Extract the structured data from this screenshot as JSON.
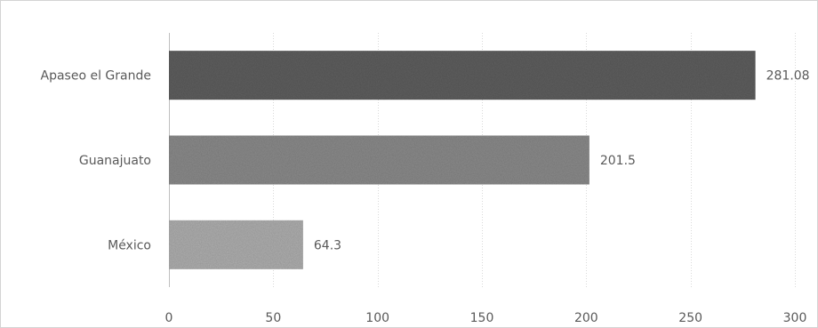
{
  "chart_data": {
    "type": "bar",
    "orientation": "horizontal",
    "categories": [
      "Apaseo el Grande",
      "Guanajuato",
      "México"
    ],
    "values": [
      281.08,
      201.5,
      64.3
    ],
    "value_labels": [
      "281.08",
      "201.5",
      "64.3"
    ],
    "title": "",
    "xlabel": "",
    "ylabel": "",
    "xlim": [
      0,
      300
    ],
    "x_ticks": [
      0,
      50,
      100,
      150,
      200,
      250,
      300
    ],
    "grid": "vertical",
    "legend": "none",
    "colors": [
      "#616161",
      "#8c8c8c",
      "#b0b0b0"
    ]
  }
}
